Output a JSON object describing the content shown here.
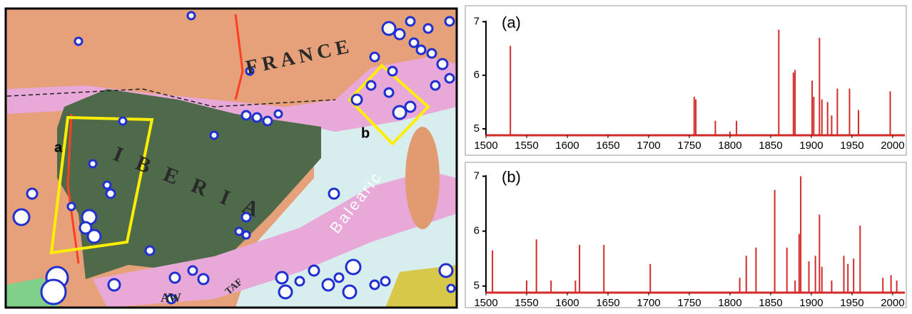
{
  "map": {
    "labels": {
      "france": "FRANCE",
      "iberia": "IBERIA",
      "balearic": "Balearic",
      "box_a": "a",
      "box_b": "b",
      "aw": "AW",
      "taf": "TAF"
    }
  },
  "chart_data": [
    {
      "type": "stem",
      "label": "(a)",
      "color": "#d42a2a",
      "x": [
        1530,
        1756,
        1758,
        1782,
        1800,
        1808,
        1860,
        1878,
        1880,
        1901,
        1903,
        1910,
        1913,
        1920,
        1925,
        1932,
        1947,
        1958,
        1997
      ],
      "values": [
        6.55,
        5.6,
        5.55,
        5.15,
        4.95,
        5.15,
        6.85,
        6.05,
        6.1,
        5.9,
        5.6,
        6.7,
        5.55,
        5.5,
        5.25,
        5.75,
        5.75,
        5.35,
        5.7
      ],
      "xlim": [
        1500,
        2015
      ],
      "xticks": [
        1500,
        1550,
        1600,
        1650,
        1700,
        1750,
        1800,
        1850,
        1900,
        1950,
        2000
      ],
      "ylim": [
        4.88,
        7.02
      ],
      "yticks": [
        5,
        6,
        7
      ]
    },
    {
      "type": "stem",
      "label": "(b)",
      "color": "#d42a2a",
      "x": [
        1508,
        1550,
        1562,
        1580,
        1610,
        1615,
        1645,
        1702,
        1812,
        1820,
        1832,
        1855,
        1870,
        1880,
        1885,
        1887,
        1897,
        1905,
        1910,
        1913,
        1925,
        1940,
        1945,
        1952,
        1960,
        1988,
        1998,
        2005
      ],
      "values": [
        5.65,
        5.1,
        5.85,
        5.1,
        5.1,
        5.75,
        5.75,
        5.4,
        5.15,
        5.55,
        5.7,
        6.75,
        5.7,
        5.1,
        5.95,
        7.0,
        5.45,
        5.55,
        6.3,
        5.35,
        5.1,
        5.55,
        5.4,
        5.5,
        6.1,
        5.15,
        5.2,
        5.1
      ],
      "xlim": [
        1500,
        2015
      ],
      "xticks": [
        1500,
        1550,
        1600,
        1650,
        1700,
        1750,
        1800,
        1850,
        1900,
        1950,
        2000
      ],
      "ylim": [
        4.88,
        7.02
      ],
      "yticks": [
        5,
        6,
        7
      ]
    }
  ]
}
